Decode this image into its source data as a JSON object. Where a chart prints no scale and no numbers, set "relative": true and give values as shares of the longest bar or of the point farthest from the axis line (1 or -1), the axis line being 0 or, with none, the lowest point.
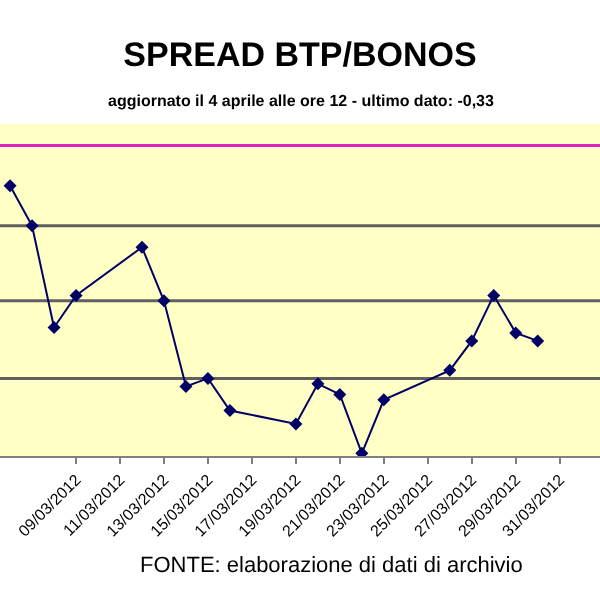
{
  "chart_data": {
    "type": "line",
    "title": "SPREAD BTP/BONOS",
    "subtitle": "aggiornato il 4 aprile alle ore 12 - ultimo dato: -0,33",
    "annotations": [
      "FONTE: elaborazione di dati di archivio"
    ],
    "relative": true,
    "x": [
      "2012-03-06",
      "2012-03-07",
      "2012-03-08",
      "2012-03-09",
      "2012-03-12",
      "2012-03-13",
      "2012-03-14",
      "2012-03-15",
      "2012-03-16",
      "2012-03-19",
      "2012-03-20",
      "2012-03-21",
      "2012-03-22",
      "2012-03-23",
      "2012-03-26",
      "2012-03-27",
      "2012-03-28",
      "2012-03-29",
      "2012-03-30"
    ],
    "series": [
      {
        "color": "#000066",
        "values": [
          1.0,
          0.85,
          0.47,
          0.59,
          0.77,
          0.57,
          0.25,
          0.28,
          0.16,
          0.11,
          0.26,
          0.22,
          0,
          0.2,
          0.31,
          0.42,
          0.59,
          0.45,
          0.42
        ]
      }
    ],
    "xlim": [
      "2012-03-05T13:00",
      "2012-04-01T20:00"
    ],
    "xticks": [
      {
        "value": "2012-03-09",
        "label": "09/03/2012"
      },
      {
        "value": "2012-03-11",
        "label": "11/03/2012"
      },
      {
        "value": "2012-03-13",
        "label": "13/03/2012"
      },
      {
        "value": "2012-03-15",
        "label": "15/03/2012"
      },
      {
        "value": "2012-03-17",
        "label": "17/03/2012"
      },
      {
        "value": "2012-03-19",
        "label": "19/03/2012"
      },
      {
        "value": "2012-03-21",
        "label": "21/03/2012"
      },
      {
        "value": "2012-03-23",
        "label": "23/03/2012"
      },
      {
        "value": "2012-03-25",
        "label": "25/03/2012"
      },
      {
        "value": "2012-03-27",
        "label": "27/03/2012"
      },
      {
        "value": "2012-03-29",
        "label": "29/03/2012"
      },
      {
        "value": "2012-03-31",
        "label": "31/03/2012"
      }
    ],
    "ref_lines": [
      {
        "axis": "y",
        "value": 1.15,
        "color": "#e020c0"
      },
      {
        "axis": "y",
        "value": 0.85,
        "color": "#606060"
      },
      {
        "axis": "y",
        "value": 0.57,
        "color": "#606060"
      },
      {
        "axis": "y",
        "value": 0.28,
        "color": "#606060"
      }
    ],
    "tick_labels": "x",
    "marker": "diamond",
    "line_style": "solid",
    "grid": false
  }
}
